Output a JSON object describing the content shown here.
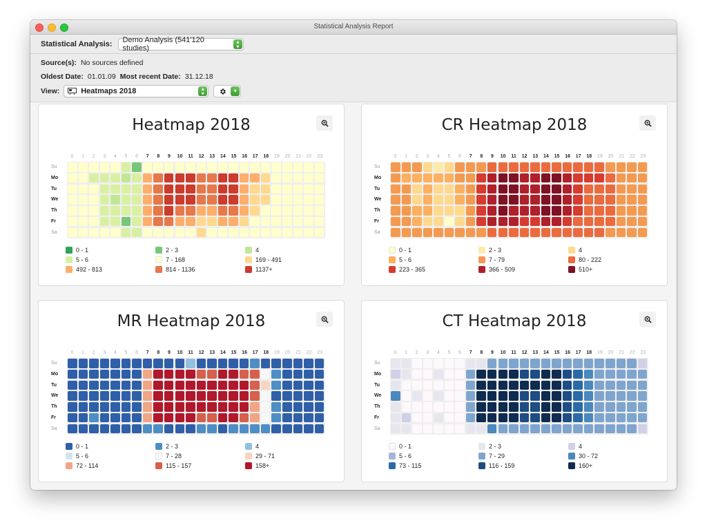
{
  "window": {
    "title": "Statistical Analysis Report"
  },
  "analysis": {
    "label": "Statistical Analysis:",
    "value": "Demo Analysis (541'120 studies)"
  },
  "info": {
    "sources_label": "Source(s):",
    "sources_value": "No sources defined",
    "oldest_label": "Oldest Date:",
    "oldest_value": "01.01.09",
    "recent_label": "Most recent Date:",
    "recent_value": "31.12.18"
  },
  "view": {
    "label": "View:",
    "value": "Heatmaps 2018"
  },
  "icons": {
    "window_close": "close-dot",
    "window_minimize": "minimize-dot",
    "window_zoom": "zoom-dot",
    "popup_stepper": "chevron-updown-icon",
    "view_icon": "presentation-icon",
    "gear": "gear-icon",
    "zoom": "magnifier-plus-icon"
  },
  "hours": [
    "0",
    "1",
    "2",
    "3",
    "4",
    "5",
    "6",
    "7",
    "8",
    "9",
    "10",
    "11",
    "12",
    "13",
    "14",
    "15",
    "16",
    "17",
    "18",
    "19",
    "20",
    "21",
    "22",
    "23"
  ],
  "bold_hours": [
    7,
    8,
    9,
    10,
    11,
    12,
    13,
    14,
    15,
    16,
    17,
    18
  ],
  "days": [
    "Su",
    "Mo",
    "Tu",
    "We",
    "Th",
    "Fr",
    "Sa"
  ],
  "bold_days": [
    1,
    2,
    3,
    4,
    5
  ],
  "heatmaps": [
    {
      "title": "Heatmap 2018",
      "legend": [
        {
          "label": "0 - 1",
          "color": "#31a354"
        },
        {
          "label": "2 - 3",
          "color": "#78c679"
        },
        {
          "label": "4",
          "color": "#c2e699"
        },
        {
          "label": "5 - 6",
          "color": "#d9f0a3"
        },
        {
          "label": "7 - 168",
          "color": "#ffffcc"
        },
        {
          "label": "169 - 491",
          "color": "#fed98e"
        },
        {
          "label": "492 - 813",
          "color": "#fdae6b"
        },
        {
          "label": "814 - 1136",
          "color": "#e6784a"
        },
        {
          "label": "1137+",
          "color": "#cc3b2b"
        }
      ],
      "grid": [
        [
          4,
          4,
          4,
          4,
          4,
          3,
          1,
          4,
          4,
          4,
          4,
          4,
          4,
          4,
          4,
          4,
          4,
          4,
          4,
          4,
          4,
          4,
          4,
          4
        ],
        [
          4,
          4,
          3,
          3,
          3,
          2,
          3,
          6,
          7,
          8,
          8,
          8,
          7,
          7,
          8,
          8,
          6,
          6,
          5,
          4,
          4,
          4,
          4,
          4
        ],
        [
          4,
          4,
          4,
          3,
          3,
          3,
          3,
          6,
          7,
          8,
          8,
          8,
          7,
          7,
          8,
          8,
          6,
          5,
          5,
          4,
          4,
          4,
          4,
          4
        ],
        [
          4,
          4,
          4,
          3,
          2,
          3,
          3,
          6,
          7,
          8,
          8,
          8,
          7,
          7,
          8,
          8,
          6,
          5,
          5,
          4,
          4,
          4,
          4,
          4
        ],
        [
          4,
          4,
          4,
          3,
          3,
          3,
          3,
          6,
          7,
          8,
          7,
          7,
          6,
          6,
          7,
          7,
          6,
          5,
          4,
          4,
          4,
          4,
          4,
          4
        ],
        [
          4,
          4,
          4,
          3,
          3,
          1,
          3,
          6,
          7,
          7,
          6,
          6,
          5,
          5,
          6,
          6,
          5,
          4,
          4,
          4,
          4,
          4,
          4,
          4
        ],
        [
          4,
          4,
          4,
          4,
          4,
          3,
          3,
          4,
          4,
          4,
          4,
          4,
          5,
          4,
          4,
          4,
          4,
          4,
          4,
          4,
          4,
          4,
          4,
          4
        ]
      ]
    },
    {
      "title": "CR Heatmap 2018",
      "legend": [
        {
          "label": "0 - 1",
          "color": "#ffffcc"
        },
        {
          "label": "2 - 3",
          "color": "#feebaa"
        },
        {
          "label": "4",
          "color": "#fed98e"
        },
        {
          "label": "5 - 6",
          "color": "#fdb060"
        },
        {
          "label": "7 - 79",
          "color": "#f49a50"
        },
        {
          "label": "80 - 222",
          "color": "#ec6b3e"
        },
        {
          "label": "223 - 365",
          "color": "#d93a30"
        },
        {
          "label": "366 - 509",
          "color": "#b0202a"
        },
        {
          "label": "510+",
          "color": "#7f1125"
        }
      ],
      "grid": [
        [
          4,
          4,
          4,
          2,
          1,
          2,
          4,
          4,
          4,
          5,
          5,
          5,
          5,
          5,
          5,
          5,
          5,
          5,
          5,
          5,
          4,
          4,
          4,
          4
        ],
        [
          4,
          3,
          3,
          3,
          3,
          3,
          4,
          4,
          6,
          7,
          8,
          8,
          7,
          7,
          8,
          8,
          7,
          6,
          6,
          6,
          5,
          4,
          4,
          4
        ],
        [
          4,
          4,
          2,
          3,
          2,
          2,
          3,
          4,
          6,
          7,
          8,
          8,
          7,
          7,
          8,
          8,
          7,
          6,
          5,
          5,
          5,
          4,
          4,
          4
        ],
        [
          4,
          4,
          2,
          3,
          2,
          2,
          3,
          4,
          6,
          7,
          8,
          8,
          7,
          7,
          8,
          8,
          7,
          6,
          5,
          5,
          5,
          4,
          4,
          4
        ],
        [
          4,
          4,
          3,
          3,
          2,
          2,
          2,
          4,
          6,
          7,
          8,
          7,
          7,
          7,
          8,
          8,
          7,
          6,
          5,
          5,
          5,
          4,
          4,
          4
        ],
        [
          4,
          4,
          3,
          2,
          2,
          0,
          2,
          4,
          6,
          7,
          7,
          7,
          6,
          6,
          7,
          7,
          6,
          5,
          5,
          5,
          5,
          4,
          4,
          4
        ],
        [
          4,
          4,
          4,
          4,
          4,
          4,
          4,
          4,
          4,
          5,
          5,
          5,
          5,
          5,
          5,
          5,
          5,
          5,
          5,
          5,
          4,
          4,
          4,
          4
        ]
      ]
    },
    {
      "title": "MR Heatmap 2018",
      "legend": [
        {
          "label": "0 - 1",
          "color": "#2f5fa8"
        },
        {
          "label": "2 - 3",
          "color": "#4e8ec6"
        },
        {
          "label": "4",
          "color": "#92c0e0"
        },
        {
          "label": "5 - 6",
          "color": "#d1e5f0"
        },
        {
          "label": "7 - 28",
          "color": "#f7f7f7"
        },
        {
          "label": "29 - 71",
          "color": "#f7d5c2"
        },
        {
          "label": "72 - 114",
          "color": "#f0a585"
        },
        {
          "label": "115 - 157",
          "color": "#d6604d"
        },
        {
          "label": "158+",
          "color": "#b2182b"
        }
      ],
      "grid": [
        [
          0,
          0,
          0,
          0,
          0,
          0,
          0,
          0,
          0,
          0,
          0,
          2,
          0,
          0,
          0,
          0,
          0,
          1,
          0,
          0,
          0,
          0,
          0,
          0
        ],
        [
          0,
          0,
          0,
          0,
          0,
          0,
          0,
          6,
          8,
          8,
          8,
          8,
          7,
          7,
          8,
          8,
          7,
          7,
          4,
          1,
          0,
          0,
          0,
          0
        ],
        [
          0,
          0,
          0,
          0,
          0,
          0,
          0,
          6,
          8,
          8,
          8,
          8,
          8,
          8,
          8,
          8,
          8,
          7,
          5,
          1,
          0,
          0,
          0,
          0
        ],
        [
          0,
          0,
          0,
          0,
          0,
          0,
          0,
          6,
          8,
          8,
          8,
          8,
          8,
          8,
          8,
          8,
          8,
          7,
          4,
          0,
          0,
          0,
          0,
          0
        ],
        [
          0,
          0,
          0,
          0,
          0,
          0,
          0,
          6,
          8,
          8,
          8,
          8,
          8,
          8,
          8,
          8,
          8,
          6,
          4,
          1,
          0,
          0,
          0,
          0
        ],
        [
          0,
          0,
          1,
          0,
          0,
          0,
          0,
          6,
          8,
          8,
          8,
          8,
          7,
          7,
          8,
          8,
          7,
          6,
          4,
          1,
          0,
          0,
          0,
          0
        ],
        [
          0,
          0,
          0,
          0,
          0,
          0,
          0,
          1,
          1,
          0,
          0,
          0,
          1,
          1,
          0,
          1,
          1,
          1,
          1,
          0,
          0,
          0,
          0,
          0
        ]
      ]
    },
    {
      "title": "CT Heatmap 2018",
      "legend": [
        {
          "label": "0 - 1",
          "color": "#fdf8fb"
        },
        {
          "label": "2 - 3",
          "color": "#e7e6ef"
        },
        {
          "label": "4",
          "color": "#d0d1e6"
        },
        {
          "label": "5 - 6",
          "color": "#a6b3d8"
        },
        {
          "label": "7 - 29",
          "color": "#7fa5cf"
        },
        {
          "label": "30 - 72",
          "color": "#4b88bd"
        },
        {
          "label": "73 - 115",
          "color": "#2b6aa8"
        },
        {
          "label": "116 - 159",
          "color": "#1d4d84"
        },
        {
          "label": "160+",
          "color": "#0f2b4f"
        }
      ],
      "grid": [
        [
          1,
          1,
          0,
          0,
          0,
          0,
          0,
          1,
          1,
          4,
          4,
          4,
          4,
          4,
          4,
          4,
          4,
          4,
          4,
          4,
          4,
          4,
          4,
          2
        ],
        [
          2,
          1,
          0,
          0,
          1,
          0,
          0,
          4,
          8,
          8,
          8,
          8,
          7,
          7,
          8,
          8,
          7,
          6,
          5,
          4,
          4,
          4,
          4,
          4
        ],
        [
          1,
          0,
          0,
          0,
          0,
          0,
          0,
          4,
          8,
          8,
          8,
          8,
          8,
          8,
          8,
          8,
          7,
          6,
          5,
          4,
          4,
          4,
          4,
          4
        ],
        [
          5,
          0,
          1,
          0,
          1,
          0,
          0,
          4,
          8,
          8,
          8,
          8,
          7,
          7,
          8,
          8,
          7,
          6,
          5,
          4,
          4,
          4,
          4,
          4
        ],
        [
          1,
          0,
          0,
          0,
          0,
          0,
          0,
          4,
          8,
          8,
          8,
          8,
          7,
          7,
          8,
          8,
          7,
          6,
          5,
          4,
          4,
          4,
          4,
          4
        ],
        [
          1,
          2,
          0,
          0,
          1,
          0,
          0,
          4,
          8,
          8,
          8,
          8,
          7,
          7,
          8,
          8,
          7,
          6,
          5,
          4,
          4,
          4,
          4,
          4
        ],
        [
          1,
          1,
          0,
          0,
          0,
          0,
          0,
          1,
          1,
          5,
          4,
          4,
          4,
          4,
          4,
          4,
          4,
          4,
          4,
          4,
          4,
          4,
          4,
          2
        ]
      ]
    }
  ]
}
